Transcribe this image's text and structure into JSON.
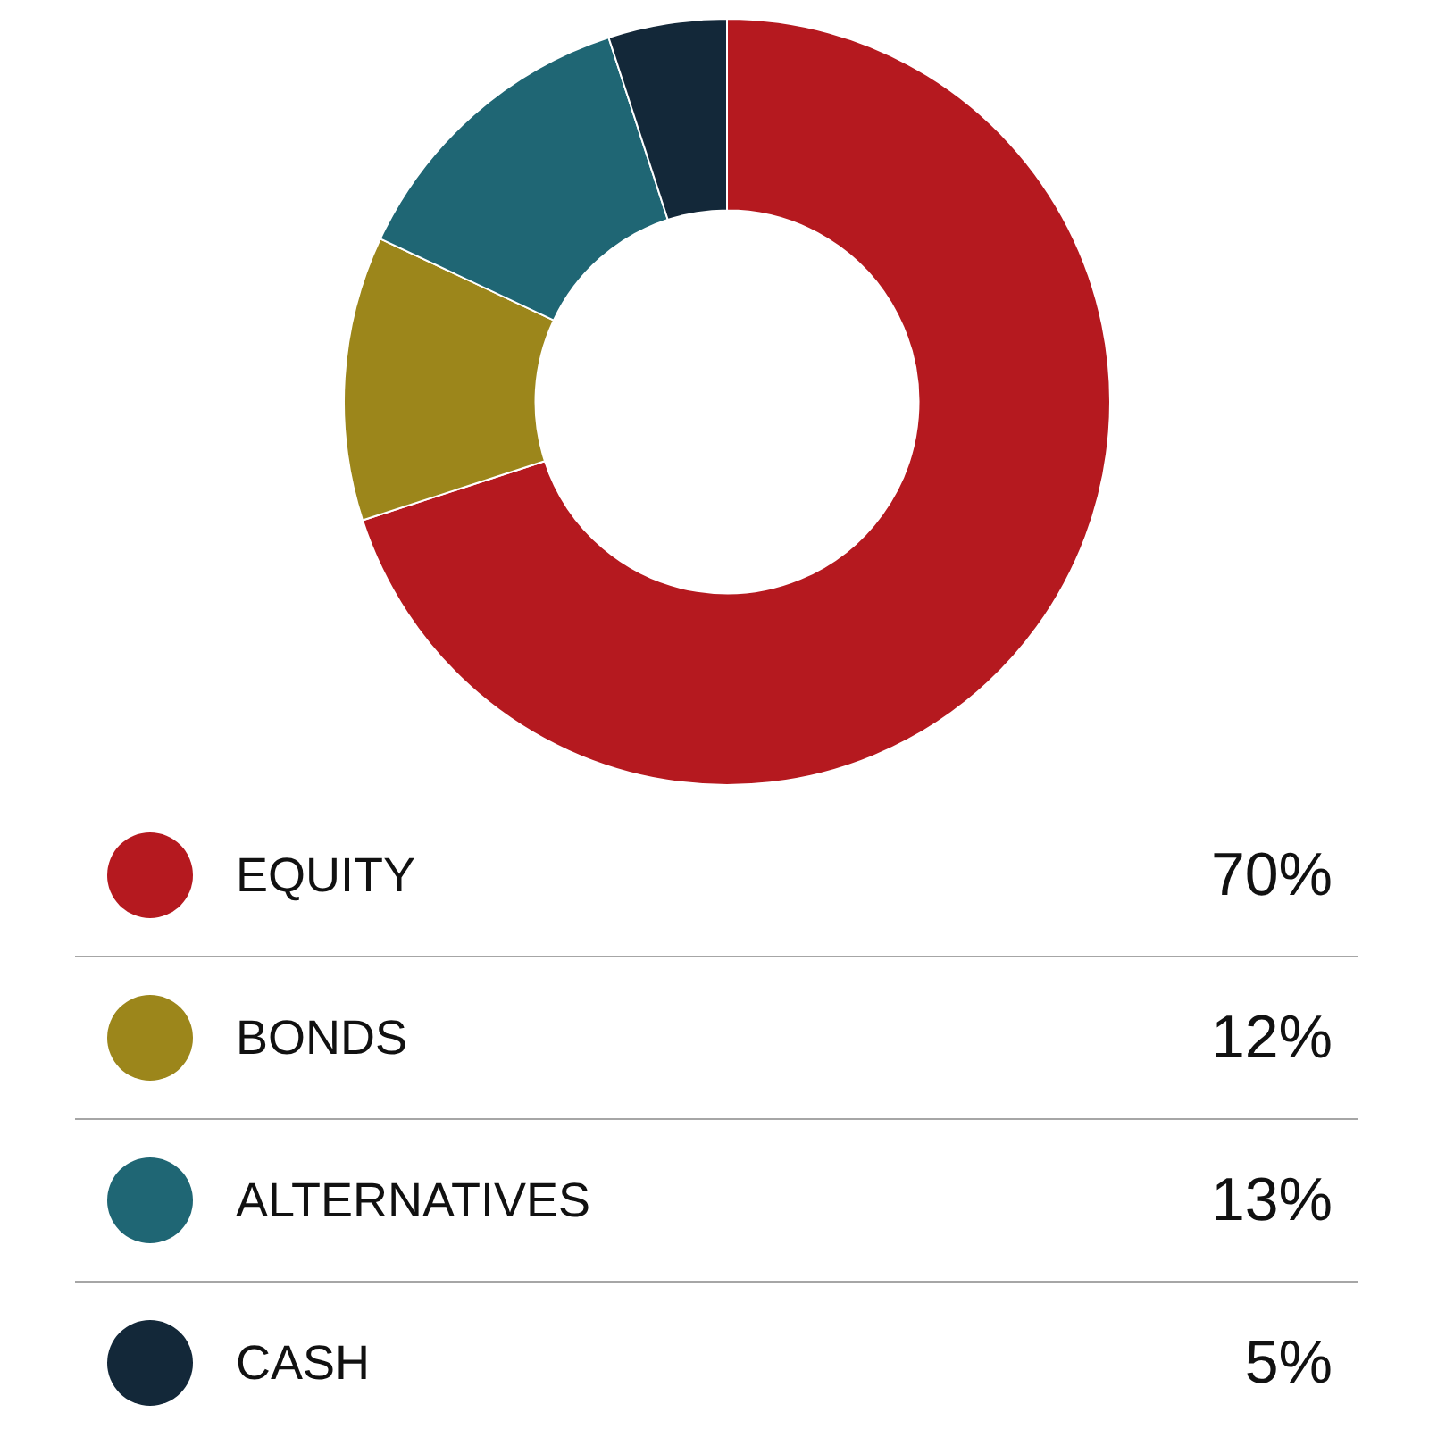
{
  "chart_data": {
    "type": "donut",
    "categories": [
      "EQUITY",
      "BONDS",
      "ALTERNATIVES",
      "CASH"
    ],
    "values": [
      70,
      12,
      13,
      5
    ],
    "colors": [
      "#b5191f",
      "#9c861b",
      "#1f6674",
      "#132839"
    ],
    "value_labels": [
      "70%",
      "12%",
      "13%",
      "5%"
    ],
    "legend": "bottom"
  }
}
